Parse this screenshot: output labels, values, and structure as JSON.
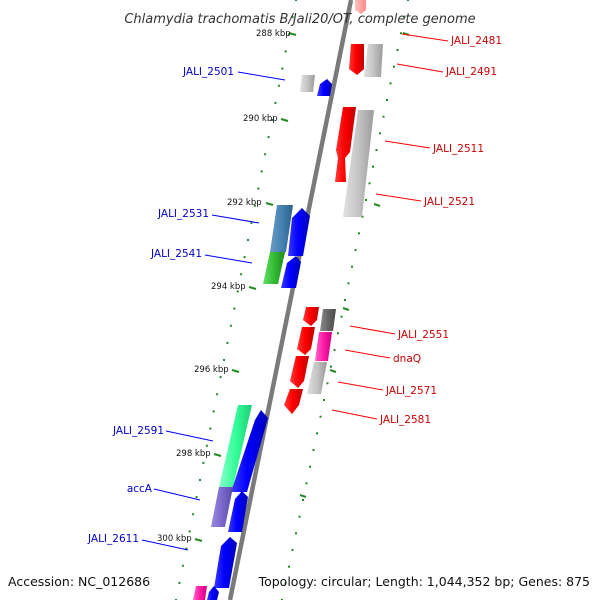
{
  "title": "Chlamydia trachomatis B/Jali20/OT, complete genome",
  "accession": "Accession: NC_012686",
  "topology": "Topology: circular; Length: 1,044,352 bp; Genes: 875",
  "colors": {
    "forward": "#0000ff",
    "reverse": "#ff0000",
    "backbone": "#888888",
    "tick": "#228b22"
  },
  "ticks": [
    {
      "label": "288 kbp"
    },
    {
      "label": "290 kbp"
    },
    {
      "label": "292 kbp"
    },
    {
      "label": "294 kbp"
    },
    {
      "label": "296 kbp"
    },
    {
      "label": "298 kbp"
    },
    {
      "label": "300 kbp"
    }
  ],
  "genes": [
    {
      "label": "JALI_2481",
      "strand": "reverse"
    },
    {
      "label": "JALI_2491",
      "strand": "reverse"
    },
    {
      "label": "JALI_2501",
      "strand": "forward"
    },
    {
      "label": "JALI_2511",
      "strand": "reverse"
    },
    {
      "label": "JALI_2521",
      "strand": "reverse"
    },
    {
      "label": "JALI_2531",
      "strand": "forward"
    },
    {
      "label": "JALI_2541",
      "strand": "forward"
    },
    {
      "label": "JALI_2551",
      "strand": "reverse"
    },
    {
      "label": "dnaQ",
      "strand": "reverse"
    },
    {
      "label": "JALI_2571",
      "strand": "reverse"
    },
    {
      "label": "JALI_2581",
      "strand": "reverse"
    },
    {
      "label": "JALI_2591",
      "strand": "forward"
    },
    {
      "label": "accA",
      "strand": "forward"
    },
    {
      "label": "JALI_2611",
      "strand": "forward"
    }
  ]
}
